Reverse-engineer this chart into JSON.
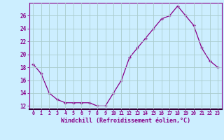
{
  "hours": [
    0,
    1,
    2,
    3,
    4,
    5,
    6,
    7,
    8,
    9,
    10,
    11,
    12,
    13,
    14,
    15,
    16,
    17,
    18,
    19,
    20,
    21,
    22,
    23
  ],
  "values": [
    18.5,
    17.0,
    14.0,
    13.0,
    12.5,
    12.5,
    12.5,
    12.5,
    12.0,
    12.0,
    14.0,
    16.0,
    19.5,
    21.0,
    22.5,
    24.0,
    25.5,
    26.0,
    27.5,
    26.0,
    24.5,
    21.0,
    19.0,
    18.0
  ],
  "x_labels": [
    "0",
    "1",
    "2",
    "3",
    "4",
    "5",
    "6",
    "7",
    "8",
    "9",
    "10",
    "11",
    "12",
    "13",
    "14",
    "15",
    "16",
    "17",
    "18",
    "19",
    "20",
    "21",
    "22",
    "23"
  ],
  "xlabel": "Windchill (Refroidissement éolien,°C)",
  "ylim": [
    11.5,
    28.0
  ],
  "yticks": [
    12,
    14,
    16,
    18,
    20,
    22,
    24,
    26
  ],
  "line_color": "#880088",
  "marker": "+",
  "bg_color": "#cceeff",
  "grid_color": "#aacccc",
  "tick_color": "#880088",
  "label_color": "#880088"
}
